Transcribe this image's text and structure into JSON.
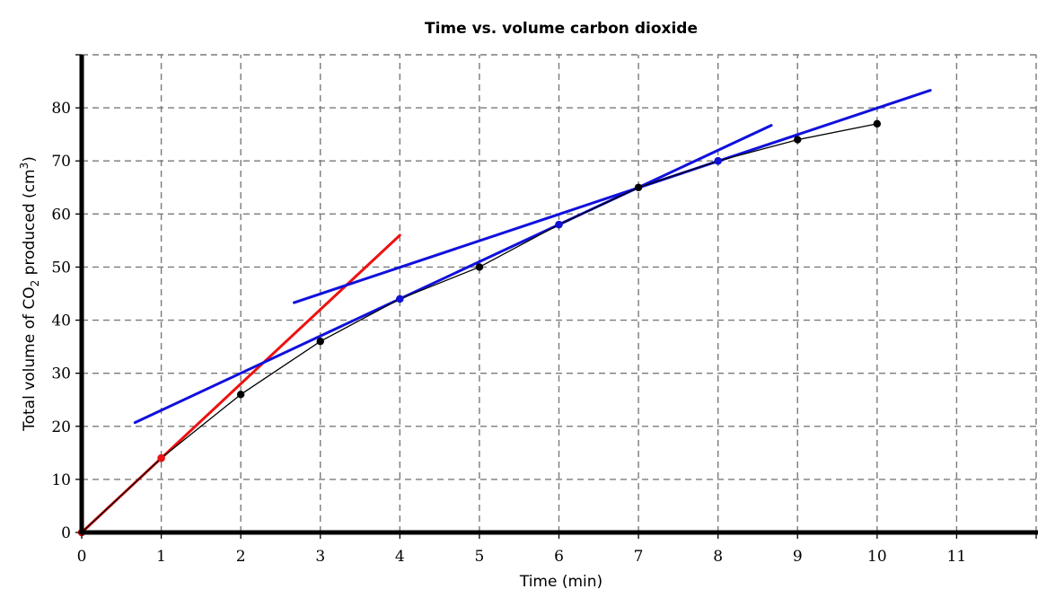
{
  "chart_data": {
    "type": "line",
    "title": "Time vs. volume carbon dioxide",
    "xlabel": "Time (min)",
    "ylabel_parts": [
      "Total volume of CO",
      "2",
      " produced (cm",
      "3",
      ")"
    ],
    "xlim": [
      0,
      12
    ],
    "ylim": [
      0,
      90
    ],
    "x_ticks": [
      "0",
      "1",
      "2",
      "3",
      "4",
      "5",
      "6",
      "7",
      "8",
      "9",
      "10",
      "11"
    ],
    "y_ticks": [
      "0",
      "10",
      "20",
      "30",
      "40",
      "50",
      "60",
      "70",
      "80"
    ],
    "grid": true,
    "series": [
      {
        "x": [
          0,
          1,
          2,
          3,
          4,
          5,
          6,
          7,
          8,
          9,
          10
        ],
        "y": [
          0,
          14,
          26,
          36,
          44,
          50,
          58,
          65,
          70,
          74,
          77
        ],
        "line_color": "#000000",
        "marker_color": "#000000"
      }
    ],
    "tangent_lines": [
      {
        "color": "#ee1111",
        "x": [
          0,
          4
        ],
        "y": [
          0,
          56
        ]
      },
      {
        "color": "#1010dd",
        "x": [
          0.67,
          8.67
        ],
        "y": [
          20.7,
          76.7
        ]
      },
      {
        "color": "#1010dd",
        "x": [
          2.67,
          10.67
        ],
        "y": [
          43.3,
          83.3
        ]
      }
    ],
    "highlighted_points": [
      {
        "x": 0,
        "y": 0,
        "color": "#ee1111"
      },
      {
        "x": 1,
        "y": 14,
        "color": "#ee1111"
      },
      {
        "x": 4,
        "y": 44,
        "color": "#1010dd"
      },
      {
        "x": 6,
        "y": 58,
        "color": "#1010dd"
      },
      {
        "x": 8,
        "y": 70,
        "color": "#1010dd"
      }
    ]
  }
}
